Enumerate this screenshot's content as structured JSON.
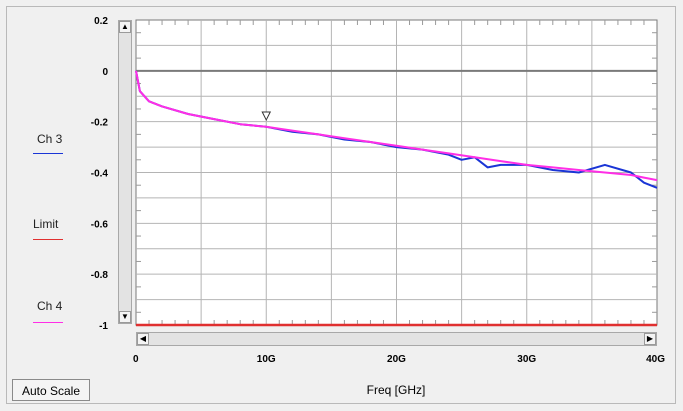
{
  "chart_data": {
    "type": "line",
    "xlabel": "Freq [GHz]",
    "xlim": [
      0,
      40
    ],
    "ylim": [
      -1,
      0.2
    ],
    "x_ticks": [
      {
        "value": 0,
        "label": "0"
      },
      {
        "value": 10,
        "label": "10G"
      },
      {
        "value": 20,
        "label": "20G"
      },
      {
        "value": 30,
        "label": "30G"
      },
      {
        "value": 40,
        "label": "40G"
      }
    ],
    "y_ticks": [
      {
        "value": 0.2,
        "label": "0.2"
      },
      {
        "value": 0,
        "label": "0"
      },
      {
        "value": -0.2,
        "label": "-0.2"
      },
      {
        "value": -0.4,
        "label": "-0.4"
      },
      {
        "value": -0.6,
        "label": "-0.6"
      },
      {
        "value": -0.8,
        "label": "-0.8"
      },
      {
        "value": -1,
        "label": "-1"
      }
    ],
    "grid": true,
    "legend_position": "left",
    "reference_line": {
      "y": 0,
      "color": "#7a7a7a"
    },
    "marker": {
      "x": 10,
      "y": -0.205,
      "shape": "triangle-down"
    },
    "series": [
      {
        "name": "Ch 3",
        "color": "#1a35d6",
        "x": [
          0,
          0.3,
          1,
          2,
          4,
          6,
          8,
          10,
          12,
          14,
          16,
          18,
          20,
          22,
          24,
          25,
          26,
          27,
          28,
          30,
          32,
          34,
          36,
          38,
          39,
          40
        ],
        "y": [
          0,
          -0.08,
          -0.12,
          -0.14,
          -0.17,
          -0.19,
          -0.21,
          -0.22,
          -0.24,
          -0.25,
          -0.27,
          -0.28,
          -0.3,
          -0.31,
          -0.33,
          -0.35,
          -0.34,
          -0.38,
          -0.37,
          -0.37,
          -0.39,
          -0.4,
          -0.37,
          -0.4,
          -0.44,
          -0.46
        ]
      },
      {
        "name": "Limit",
        "color": "#e03030",
        "x": [
          0,
          40
        ],
        "y": [
          -1,
          -1
        ]
      },
      {
        "name": "Ch 4",
        "color": "#ff2ee6",
        "x": [
          0,
          0.3,
          1,
          2,
          4,
          6,
          8,
          10,
          12,
          14,
          16,
          18,
          20,
          22,
          24,
          26,
          28,
          30,
          32,
          34,
          36,
          38,
          39,
          40
        ],
        "y": [
          0,
          -0.08,
          -0.12,
          -0.14,
          -0.17,
          -0.19,
          -0.21,
          -0.22,
          -0.235,
          -0.25,
          -0.265,
          -0.28,
          -0.295,
          -0.31,
          -0.325,
          -0.34,
          -0.355,
          -0.37,
          -0.38,
          -0.39,
          -0.4,
          -0.41,
          -0.42,
          -0.43
        ]
      }
    ]
  },
  "controls": {
    "auto_scale_label": "Auto Scale"
  },
  "legend": [
    {
      "label": "Ch 3",
      "color": "#1a35d6"
    },
    {
      "label": "Limit",
      "color": "#e03030"
    },
    {
      "label": "Ch 4",
      "color": "#ff2ee6"
    }
  ]
}
